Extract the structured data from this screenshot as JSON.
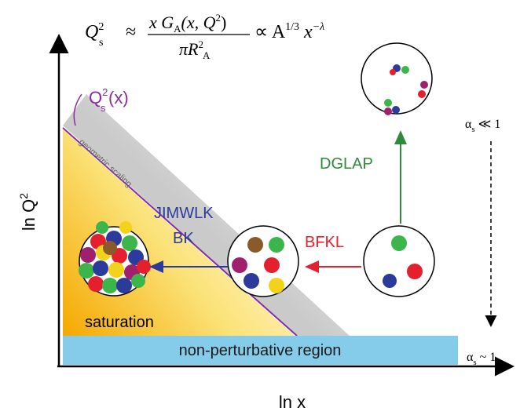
{
  "formula": {
    "lhs": "Q",
    "lhs_sup": "2",
    "lhs_sub": "s",
    "approx": "≈",
    "numerator": "x G",
    "num_sub": "A",
    "num_args": "(x, Q",
    "num_sup": "2",
    "num_close": ")",
    "denominator": "πR",
    "den_sup": "2",
    "den_sub": "A",
    "propto": "∝ A",
    "a_exp": "1/3",
    "x": " x",
    "x_exp": "−λ"
  },
  "axes": {
    "y_label": "ln Q",
    "y_label_sup": "2",
    "x_label": "ln x"
  },
  "saturation_line": {
    "label": "Q",
    "label_sup": "2",
    "label_sub": "s",
    "label_arg": "(x)",
    "along_label": "geometric scaling"
  },
  "evolutions": {
    "jimwlk": "JIMWLK",
    "bk": "BK",
    "bfkl": "BFKL",
    "dglap": "DGLAP"
  },
  "regions": {
    "saturation": "saturation",
    "non_perturbative": "non-perturbative region"
  },
  "coupling": {
    "weak": "α",
    "weak_sub": "s",
    "weak_rel": " ≪ 1",
    "strong": "α",
    "strong_sub": "s",
    "strong_rel": " ~ 1"
  }
}
